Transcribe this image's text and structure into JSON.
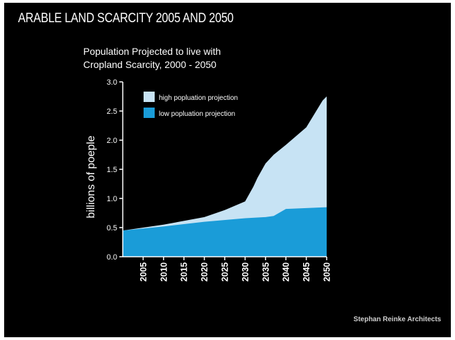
{
  "header": {
    "title": "ARABLE LAND SCARCITY 2005 AND 2050"
  },
  "footer": {
    "credit": "Stephan Reinke Architects"
  },
  "colors": {
    "background": "#000000",
    "high": "#c7e3f4",
    "low": "#1a9cd8",
    "text": "#ffffff"
  },
  "chart_data": {
    "type": "area",
    "title": "Population Projected to live with Cropland Scarcity, 2000 - 2050",
    "title_lines": [
      "Population Projected to live with",
      "Cropland Scarcity, 2000 - 2050"
    ],
    "xlabel": "",
    "ylabel": "billions of poeple",
    "xlim": [
      2000,
      2050
    ],
    "ylim": [
      0,
      3.0
    ],
    "x_ticks": [
      "2005",
      "2010",
      "2015",
      "2020",
      "2025",
      "2030",
      "2035",
      "2040",
      "2045",
      "2050"
    ],
    "y_ticks": [
      "0.0",
      "0.5",
      "1.0",
      "1.5",
      "2.0",
      "2.5",
      "3.0"
    ],
    "grid": false,
    "legend_position": "top-left",
    "series": [
      {
        "name": "high popluation projection",
        "color": "#c7e3f4",
        "x": [
          2000,
          2010,
          2020,
          2025,
          2029,
          2030,
          2032,
          2033,
          2035,
          2037,
          2040,
          2045,
          2049,
          2050
        ],
        "values": [
          0.45,
          0.55,
          0.68,
          0.8,
          0.92,
          0.95,
          1.2,
          1.35,
          1.6,
          1.75,
          1.92,
          2.22,
          2.68,
          2.75
        ]
      },
      {
        "name": "low popluation projection",
        "color": "#1a9cd8",
        "x": [
          2000,
          2010,
          2020,
          2030,
          2035,
          2037,
          2040,
          2050
        ],
        "values": [
          0.45,
          0.52,
          0.6,
          0.66,
          0.68,
          0.7,
          0.82,
          0.85
        ]
      }
    ]
  }
}
